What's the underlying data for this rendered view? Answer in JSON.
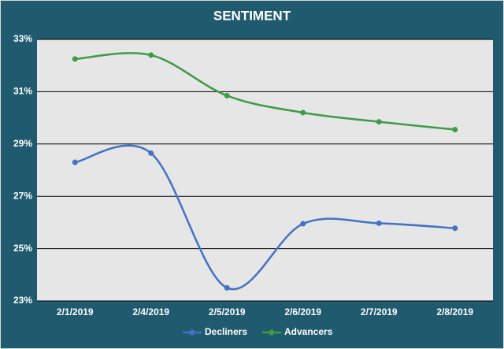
{
  "chart_data": {
    "type": "line",
    "title": "SENTIMENT",
    "categories": [
      "2/1/2019",
      "2/4/2019",
      "2/5/2019",
      "2/6/2019",
      "2/7/2019",
      "2/8/2019"
    ],
    "series": [
      {
        "name": "Decliners",
        "color": "#4472c4",
        "values": [
          28.3,
          28.65,
          23.5,
          25.95,
          25.97,
          25.78
        ]
      },
      {
        "name": "Advancers",
        "color": "#3e9b48",
        "values": [
          32.25,
          32.4,
          30.85,
          30.2,
          29.85,
          29.55
        ]
      }
    ],
    "ylim": [
      23,
      33
    ],
    "yticks": [
      {
        "value": 23,
        "label": "23%"
      },
      {
        "value": 25,
        "label": "25%"
      },
      {
        "value": 27,
        "label": "27%"
      },
      {
        "value": 29,
        "label": "29%"
      },
      {
        "value": 31,
        "label": "31%"
      },
      {
        "value": 33,
        "label": "33%"
      }
    ],
    "grid": true,
    "smooth": true,
    "legend": "bottom"
  }
}
